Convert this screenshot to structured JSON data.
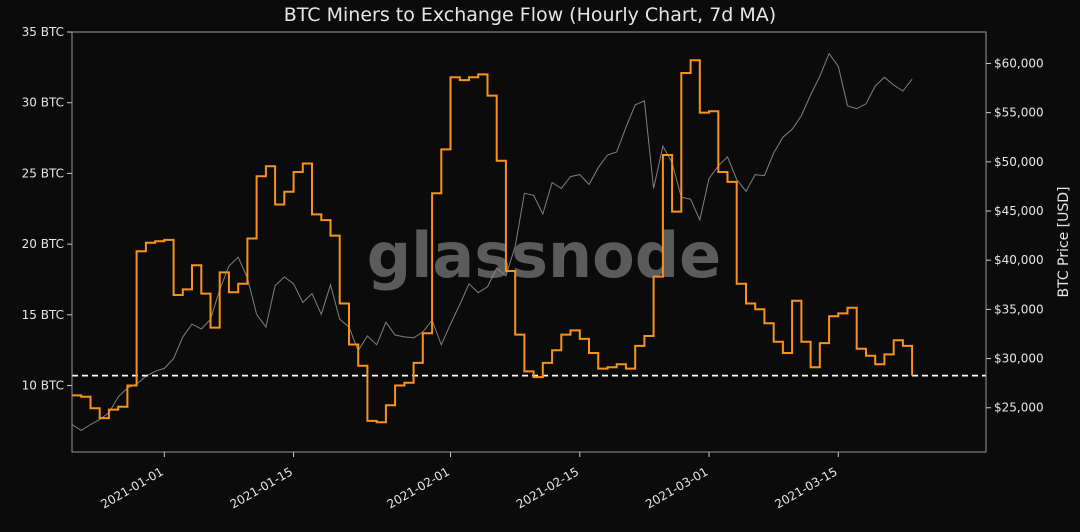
{
  "chart_data": {
    "type": "line",
    "title": "BTC Miners to Exchange Flow (Hourly Chart, 7d MA)",
    "watermark": "glassnode",
    "xlabel": "",
    "ylabel_left": "",
    "ylabel_right": "BTC Price [USD]",
    "x_ticks": [
      "2021-01-01",
      "2021-01-15",
      "2021-02-01",
      "2021-02-15",
      "2021-03-01",
      "2021-03-15"
    ],
    "x_tick_dates": [
      "2021-01-01",
      "2021-01-15",
      "2021-02-01",
      "2021-02-15",
      "2021-03-01",
      "2021-03-15"
    ],
    "xlim": [
      "2020-12-22",
      "2021-03-31"
    ],
    "y_left_ticks": [
      "10 BTC",
      "15 BTC",
      "20 BTC",
      "25 BTC",
      "30 BTC",
      "35 BTC"
    ],
    "y_left_values": [
      10,
      15,
      20,
      25,
      30,
      35
    ],
    "ylim_left": [
      5.3,
      35
    ],
    "y_right_ticks": [
      "$25,000",
      "$30,000",
      "$35,000",
      "$40,000",
      "$45,000",
      "$50,000",
      "$55,000",
      "$60,000"
    ],
    "y_right_values": [
      25000,
      30000,
      35000,
      40000,
      45000,
      50000,
      55000,
      60000
    ],
    "ylim_right": [
      20500,
      63200
    ],
    "threshold": {
      "value": 10.7,
      "style": "dashed",
      "color": "#ffffff"
    },
    "colors": {
      "background": "#0b0b0b",
      "flow": "#f7931a",
      "price": "#8c8c8c",
      "text": "#e6e6e6",
      "watermark": "#6a6a6a"
    },
    "grid": false,
    "series": [
      {
        "axis": "left",
        "x": [
          "2020-12-22",
          "2020-12-23",
          "2020-12-24",
          "2020-12-25",
          "2020-12-26",
          "2020-12-27",
          "2020-12-28",
          "2020-12-29",
          "2020-12-30",
          "2020-12-31",
          "2021-01-01",
          "2021-01-02",
          "2021-01-03",
          "2021-01-04",
          "2021-01-05",
          "2021-01-06",
          "2021-01-07",
          "2021-01-08",
          "2021-01-09",
          "2021-01-10",
          "2021-01-11",
          "2021-01-12",
          "2021-01-13",
          "2021-01-14",
          "2021-01-15",
          "2021-01-16",
          "2021-01-17",
          "2021-01-18",
          "2021-01-19",
          "2021-01-20",
          "2021-01-21",
          "2021-01-22",
          "2021-01-23",
          "2021-01-24",
          "2021-01-25",
          "2021-01-26",
          "2021-01-27",
          "2021-01-28",
          "2021-01-29",
          "2021-01-30",
          "2021-01-31",
          "2021-02-01",
          "2021-02-02",
          "2021-02-03",
          "2021-02-04",
          "2021-02-05",
          "2021-02-06",
          "2021-02-07",
          "2021-02-08",
          "2021-02-09",
          "2021-02-10",
          "2021-02-11",
          "2021-02-12",
          "2021-02-13",
          "2021-02-14",
          "2021-02-15",
          "2021-02-16",
          "2021-02-17",
          "2021-02-18",
          "2021-02-19",
          "2021-02-20",
          "2021-02-21",
          "2021-02-22",
          "2021-02-23",
          "2021-02-24",
          "2021-02-25",
          "2021-02-26",
          "2021-02-27",
          "2021-02-28",
          "2021-03-01",
          "2021-03-02",
          "2021-03-03",
          "2021-03-04",
          "2021-03-05",
          "2021-03-06",
          "2021-03-07",
          "2021-03-08",
          "2021-03-09",
          "2021-03-10",
          "2021-03-11",
          "2021-03-12",
          "2021-03-13",
          "2021-03-14",
          "2021-03-15",
          "2021-03-16",
          "2021-03-17",
          "2021-03-18",
          "2021-03-19",
          "2021-03-20",
          "2021-03-21",
          "2021-03-22",
          "2021-03-23"
        ],
        "values": [
          9.3,
          9.2,
          8.4,
          7.7,
          8.3,
          8.5,
          10.0,
          19.5,
          20.1,
          20.2,
          20.3,
          16.4,
          16.8,
          18.5,
          16.5,
          14.1,
          18.0,
          16.6,
          17.2,
          20.4,
          24.8,
          25.5,
          22.8,
          23.7,
          25.1,
          25.7,
          22.1,
          21.7,
          20.6,
          15.8,
          12.9,
          11.4,
          7.5,
          7.4,
          8.6,
          10.0,
          10.2,
          11.6,
          13.7,
          23.6,
          26.7,
          31.8,
          31.6,
          31.8,
          32.0,
          30.5,
          25.9,
          18.1,
          13.6,
          11.0,
          10.6,
          11.6,
          12.5,
          13.6,
          13.9,
          13.3,
          12.3,
          11.2,
          11.3,
          11.5,
          11.2,
          12.8,
          13.5,
          17.7,
          26.3,
          22.3,
          32.1,
          33.0,
          29.3,
          29.4,
          25.1,
          24.4,
          17.2,
          15.8,
          15.4,
          14.4,
          13.1,
          12.3,
          16.0,
          13.1,
          11.3,
          13.0,
          14.9,
          15.1,
          15.5,
          12.6,
          12.1,
          11.5,
          12.2,
          13.2,
          12.8,
          10.7
        ]
      },
      {
        "axis": "right",
        "x": [
          "2020-12-22",
          "2020-12-23",
          "2020-12-24",
          "2020-12-25",
          "2020-12-26",
          "2020-12-27",
          "2020-12-28",
          "2020-12-29",
          "2020-12-30",
          "2020-12-31",
          "2021-01-01",
          "2021-01-02",
          "2021-01-03",
          "2021-01-04",
          "2021-01-05",
          "2021-01-06",
          "2021-01-07",
          "2021-01-08",
          "2021-01-09",
          "2021-01-10",
          "2021-01-11",
          "2021-01-12",
          "2021-01-13",
          "2021-01-14",
          "2021-01-15",
          "2021-01-16",
          "2021-01-17",
          "2021-01-18",
          "2021-01-19",
          "2021-01-20",
          "2021-01-21",
          "2021-01-22",
          "2021-01-23",
          "2021-01-24",
          "2021-01-25",
          "2021-01-26",
          "2021-01-27",
          "2021-01-28",
          "2021-01-29",
          "2021-01-30",
          "2021-01-31",
          "2021-02-01",
          "2021-02-02",
          "2021-02-03",
          "2021-02-04",
          "2021-02-05",
          "2021-02-06",
          "2021-02-07",
          "2021-02-08",
          "2021-02-09",
          "2021-02-10",
          "2021-02-11",
          "2021-02-12",
          "2021-02-13",
          "2021-02-14",
          "2021-02-15",
          "2021-02-16",
          "2021-02-17",
          "2021-02-18",
          "2021-02-19",
          "2021-02-20",
          "2021-02-21",
          "2021-02-22",
          "2021-02-23",
          "2021-02-24",
          "2021-02-25",
          "2021-02-26",
          "2021-02-27",
          "2021-02-28",
          "2021-03-01",
          "2021-03-02",
          "2021-03-03",
          "2021-03-04",
          "2021-03-05",
          "2021-03-06",
          "2021-03-07",
          "2021-03-08",
          "2021-03-09",
          "2021-03-10",
          "2021-03-11",
          "2021-03-12",
          "2021-03-13",
          "2021-03-14",
          "2021-03-15",
          "2021-03-16",
          "2021-03-17",
          "2021-03-18",
          "2021-03-19",
          "2021-03-20",
          "2021-03-21",
          "2021-03-22",
          "2021-03-23"
        ],
        "values": [
          23300,
          22700,
          23300,
          23800,
          24500,
          26100,
          27000,
          27400,
          28200,
          28700,
          29000,
          30000,
          32200,
          33500,
          33000,
          34000,
          37000,
          39400,
          40300,
          38200,
          34500,
          33200,
          37400,
          38300,
          37600,
          35700,
          36600,
          34500,
          37500,
          34000,
          33200,
          30800,
          32300,
          31400,
          33700,
          32400,
          32200,
          32100,
          32700,
          33900,
          31400,
          33500,
          35500,
          37600,
          36700,
          37300,
          39200,
          38400,
          41400,
          46800,
          46600,
          44700,
          47900,
          47300,
          48500,
          48700,
          47700,
          49400,
          50700,
          51000,
          53500,
          55800,
          56200,
          47300,
          51600,
          49900,
          46400,
          46200,
          44100,
          48300,
          49600,
          50500,
          48200,
          47000,
          48700,
          48600,
          50900,
          52500,
          53300,
          54700,
          56800,
          58700,
          61000,
          59700,
          55700,
          55400,
          55900,
          57700,
          58600,
          57800,
          57200,
          58400
        ]
      }
    ]
  }
}
